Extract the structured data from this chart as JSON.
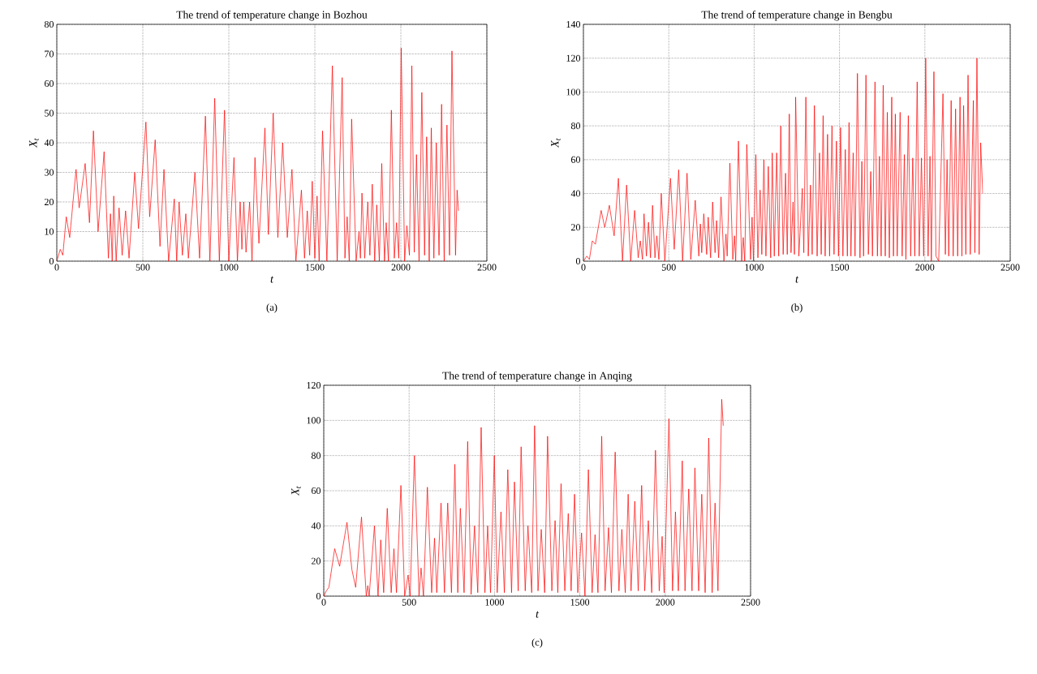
{
  "chart_data": [
    {
      "type": "line",
      "title": "The trend of temperature change in Bozhou",
      "xlabel": "t",
      "ylabel": "X$_{t}$",
      "annotations": [
        "(a)"
      ],
      "xlim": [
        0,
        2500
      ],
      "ylim": [
        0,
        80
      ],
      "xticks": [
        0,
        500,
        1000,
        1500,
        2000,
        2500
      ],
      "yticks": [
        0,
        10,
        20,
        30,
        40,
        50,
        60,
        70,
        80
      ],
      "grid": true,
      "marker": "none",
      "line_style": "solid",
      "series": [
        {
          "color": "#ff0000",
          "x": [
            0,
            20,
            35,
            55,
            75,
            112,
            130,
            165,
            190,
            213,
            240,
            275,
            300,
            312,
            322,
            331,
            345,
            362,
            380,
            400,
            420,
            453,
            475,
            518,
            540,
            572,
            600,
            623,
            650,
            683,
            697,
            711,
            730,
            750,
            765,
            803,
            830,
            864,
            890,
            918,
            945,
            975,
            1000,
            1030,
            1050,
            1066,
            1076,
            1087,
            1100,
            1121,
            1135,
            1152,
            1175,
            1210,
            1230,
            1258,
            1285,
            1313,
            1340,
            1367,
            1390,
            1422,
            1440,
            1456,
            1470,
            1485,
            1500,
            1513,
            1525,
            1545,
            1570,
            1602,
            1630,
            1659,
            1675,
            1688,
            1700,
            1714,
            1740,
            1757,
            1765,
            1774,
            1790,
            1808,
            1820,
            1834,
            1848,
            1860,
            1875,
            1889,
            1905,
            1915,
            1928,
            1945,
            1962,
            1975,
            1988,
            2002,
            2022,
            2035,
            2050,
            2064,
            2078,
            2091,
            2106,
            2122,
            2138,
            2150,
            2165,
            2177,
            2192,
            2206,
            2222,
            2237,
            2252,
            2268,
            2283,
            2297,
            2318,
            2327,
            2335
          ],
          "values": [
            0,
            4,
            2,
            15,
            8,
            31,
            18,
            33,
            13,
            44,
            10,
            37,
            1,
            16,
            0,
            22,
            0,
            18,
            2,
            17,
            1,
            30,
            11,
            47,
            15,
            41,
            5,
            31,
            0,
            21,
            0,
            20,
            2,
            16,
            1,
            30,
            1,
            49,
            0,
            55,
            0,
            51,
            0,
            35,
            0,
            20,
            4,
            20,
            3,
            20,
            0,
            35,
            6,
            45,
            9,
            50,
            8,
            40,
            8,
            31,
            0,
            24,
            1,
            17,
            2,
            27,
            1,
            22,
            0,
            44,
            0,
            66,
            0,
            62,
            1,
            15,
            0,
            48,
            0,
            10,
            1,
            23,
            1,
            20,
            2,
            26,
            0,
            19,
            0,
            33,
            0,
            13,
            0,
            51,
            1,
            13,
            1,
            72,
            0,
            12,
            2,
            66,
            3,
            36,
            0,
            57,
            2,
            42,
            0,
            45,
            1,
            40,
            2,
            53,
            0,
            46,
            2,
            71,
            2,
            24,
            17
          ]
        }
      ]
    },
    {
      "type": "line",
      "title": "The trend of temperature change in Bengbu",
      "xlabel": "t",
      "ylabel": "X$_{t}$",
      "annotations": [
        "(b)"
      ],
      "xlim": [
        0,
        2500
      ],
      "ylim": [
        0,
        140
      ],
      "xticks": [
        0,
        500,
        1000,
        1500,
        2000,
        2500
      ],
      "yticks": [
        0,
        20,
        40,
        60,
        80,
        100,
        120,
        140
      ],
      "grid": true,
      "marker": "none",
      "line_style": "solid",
      "series": [
        {
          "color": "#ff0000",
          "x": [
            0,
            20,
            35,
            52,
            70,
            104,
            125,
            152,
            180,
            205,
            229,
            253,
            277,
            300,
            321,
            333,
            346,
            355,
            369,
            381,
            393,
            405,
            419,
            430,
            442,
            456,
            477,
            510,
            532,
            558,
            581,
            607,
            629,
            655,
            676,
            685,
            693,
            705,
            722,
            731,
            745,
            757,
            771,
            780,
            792,
            806,
            823,
            835,
            842,
            858,
            875,
            885,
            892,
            908,
            927,
            936,
            945,
            957,
            979,
            988,
            996,
            1010,
            1022,
            1035,
            1045,
            1057,
            1069,
            1083,
            1097,
            1106,
            1118,
            1132,
            1144,
            1156,
            1170,
            1184,
            1194,
            1206,
            1216,
            1228,
            1236,
            1243,
            1262,
            1282,
            1291,
            1303,
            1317,
            1330,
            1340,
            1353,
            1369,
            1383,
            1393,
            1404,
            1416,
            1430,
            1442,
            1456,
            1468,
            1482,
            1494,
            1506,
            1520,
            1534,
            1546,
            1556,
            1567,
            1580,
            1591,
            1605,
            1620,
            1631,
            1641,
            1655,
            1669,
            1683,
            1693,
            1708,
            1722,
            1734,
            1744,
            1756,
            1768,
            1780,
            1792,
            1806,
            1816,
            1827,
            1838,
            1855,
            1867,
            1880,
            1889,
            1903,
            1917,
            1929,
            1941,
            1955,
            1967,
            1980,
            1993,
            2005,
            2019,
            2030,
            2038,
            2053,
            2065,
            2081,
            2106,
            2120,
            2130,
            2140,
            2154,
            2166,
            2180,
            2192,
            2206,
            2217,
            2227,
            2240,
            2253,
            2266,
            2284,
            2293,
            2305,
            2318,
            2327,
            2339
          ],
          "values": [
            0,
            3,
            1,
            12,
            10,
            30,
            20,
            33,
            15,
            49,
            0,
            45,
            0,
            30,
            2,
            12,
            1,
            28,
            3,
            23,
            2,
            33,
            2,
            15,
            1,
            40,
            0,
            49,
            7,
            54,
            0,
            52,
            1,
            36,
            3,
            22,
            5,
            28,
            4,
            26,
            2,
            35,
            5,
            24,
            2,
            38,
            0,
            16,
            3,
            58,
            1,
            15,
            0,
            71,
            0,
            14,
            0,
            69,
            1,
            26,
            0,
            63,
            2,
            42,
            4,
            60,
            3,
            56,
            2,
            64,
            3,
            64,
            3,
            80,
            4,
            52,
            4,
            87,
            5,
            35,
            4,
            97,
            3,
            43,
            5,
            97,
            3,
            45,
            4,
            92,
            3,
            64,
            4,
            86,
            3,
            75,
            3,
            80,
            4,
            71,
            3,
            79,
            3,
            66,
            3,
            82,
            3,
            64,
            3,
            111,
            2,
            59,
            3,
            110,
            4,
            53,
            3,
            106,
            3,
            62,
            3,
            104,
            3,
            88,
            2,
            97,
            3,
            87,
            3,
            88,
            3,
            63,
            1,
            86,
            3,
            61,
            3,
            106,
            3,
            61,
            3,
            120,
            3,
            62,
            0,
            112,
            3,
            0,
            99,
            4,
            60,
            3,
            95,
            3,
            90,
            3,
            97,
            3,
            92,
            4,
            110,
            4,
            95,
            5,
            120,
            4,
            70,
            40
          ]
        }
      ]
    },
    {
      "type": "line",
      "title": "The trend of temperature change in Anqing",
      "xlabel": "t",
      "ylabel": "X$_{t}$",
      "annotations": [
        "(c)"
      ],
      "xlim": [
        0,
        2500
      ],
      "ylim": [
        0,
        120
      ],
      "xticks": [
        0,
        500,
        1000,
        1500,
        2000,
        2500
      ],
      "yticks": [
        0,
        20,
        40,
        60,
        80,
        100,
        120
      ],
      "grid": true,
      "marker": "none",
      "line_style": "solid",
      "series": [
        {
          "color": "#ff0000",
          "x": [
            0,
            15,
            30,
            64,
            93,
            136,
            165,
            187,
            221,
            249,
            258,
            266,
            297,
            318,
            334,
            351,
            372,
            395,
            411,
            426,
            452,
            474,
            494,
            506,
            531,
            558,
            570,
            584,
            607,
            632,
            649,
            662,
            687,
            707,
            726,
            748,
            768,
            785,
            800,
            822,
            843,
            863,
            883,
            902,
            922,
            944,
            960,
            977,
            999,
            1016,
            1038,
            1058,
            1078,
            1100,
            1117,
            1139,
            1156,
            1180,
            1196,
            1218,
            1235,
            1255,
            1274,
            1294,
            1311,
            1336,
            1355,
            1371,
            1390,
            1412,
            1432,
            1449,
            1469,
            1488,
            1510,
            1530,
            1550,
            1572,
            1589,
            1606,
            1628,
            1648,
            1668,
            1685,
            1707,
            1729,
            1746,
            1766,
            1783,
            1800,
            1822,
            1842,
            1862,
            1880,
            1901,
            1921,
            1943,
            1965,
            1982,
            1994,
            2022,
            2043,
            2060,
            2077,
            2100,
            2116,
            2138,
            2157,
            2174,
            2196,
            2214,
            2234,
            2255,
            2275,
            2292,
            2309,
            2331,
            2340
          ],
          "values": [
            0,
            3,
            5,
            27,
            17,
            42,
            15,
            5,
            45,
            0,
            6,
            0,
            40,
            0,
            32,
            2,
            50,
            2,
            27,
            2,
            63,
            0,
            12,
            0,
            80,
            0,
            16,
            0,
            62,
            2,
            33,
            2,
            53,
            2,
            53,
            2,
            75,
            2,
            50,
            2,
            88,
            1,
            40,
            2,
            96,
            2,
            40,
            2,
            80,
            2,
            48,
            2,
            72,
            2,
            65,
            3,
            85,
            3,
            40,
            2,
            97,
            3,
            38,
            2,
            91,
            3,
            43,
            2,
            64,
            3,
            47,
            3,
            58,
            2,
            36,
            0,
            72,
            2,
            35,
            2,
            91,
            3,
            39,
            2,
            82,
            3,
            38,
            2,
            58,
            3,
            54,
            3,
            63,
            3,
            43,
            2,
            83,
            3,
            34,
            2,
            101,
            3,
            48,
            3,
            77,
            3,
            61,
            3,
            73,
            3,
            58,
            2,
            90,
            2,
            53,
            3,
            112,
            97
          ]
        }
      ]
    }
  ]
}
